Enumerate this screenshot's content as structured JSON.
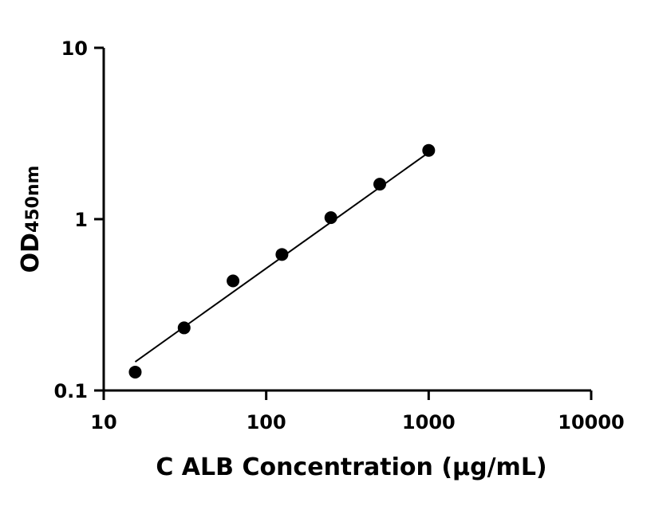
{
  "chart_data": {
    "type": "scatter",
    "title": "",
    "xlabel": "C ALB Concentration (µg/mL)",
    "ylabel_main": "OD",
    "ylabel_sub": "450nm",
    "x_scale": "log",
    "y_scale": "log",
    "xlim": [
      10,
      10000
    ],
    "ylim": [
      0.1,
      10
    ],
    "x_ticks": [
      10,
      100,
      1000,
      10000
    ],
    "x_tick_labels": [
      "10",
      "100",
      "1000",
      "10000"
    ],
    "y_ticks": [
      0.1,
      1,
      10
    ],
    "y_tick_labels": [
      "0.1",
      "1",
      "10"
    ],
    "grid": false,
    "series": [
      {
        "x": [
          15.625,
          31.25,
          62.5,
          125,
          250,
          500,
          1000
        ],
        "y": [
          0.128,
          0.232,
          0.436,
          0.622,
          1.02,
          1.6,
          2.52
        ]
      }
    ],
    "fit_line": {
      "x": [
        15.625,
        1000
      ],
      "y": [
        0.147,
        2.45
      ]
    },
    "colors": {
      "points": "#000000",
      "line": "#000000",
      "axes": "#000000"
    }
  }
}
